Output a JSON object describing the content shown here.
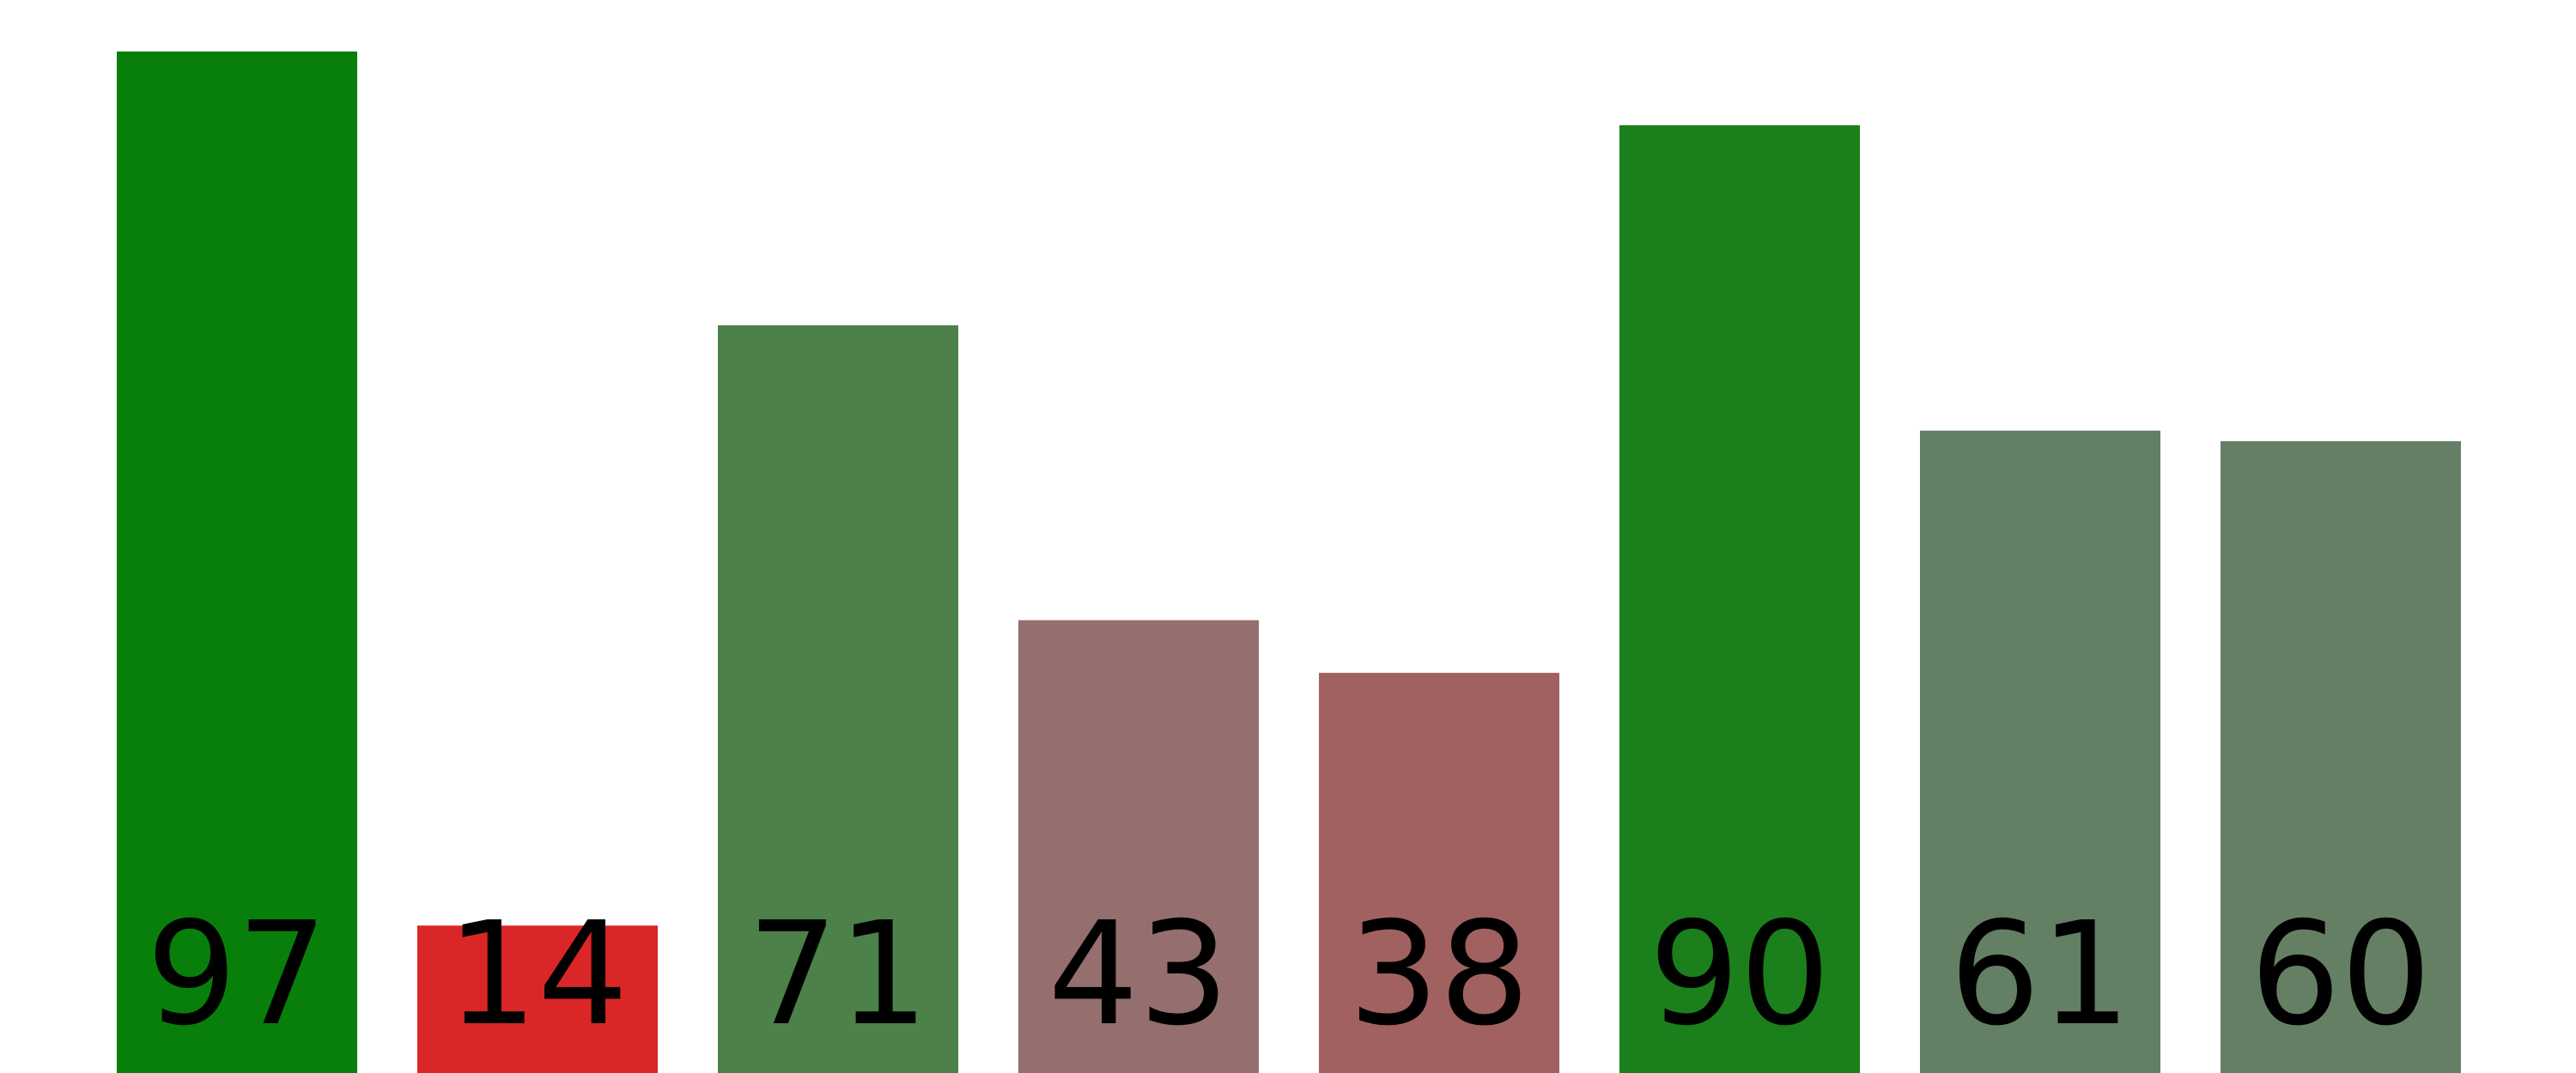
{
  "chart_data": {
    "type": "bar",
    "categories": [
      "",
      "",
      "",
      "",
      "",
      "",
      "",
      ""
    ],
    "values": [
      97,
      14,
      71,
      43,
      38,
      90,
      61,
      60
    ],
    "value_labels": [
      "97",
      "14",
      "71",
      "43",
      "38",
      "90",
      "61",
      "60"
    ],
    "colors": [
      "#087f0a",
      "#db2628",
      "#4c8149",
      "#946f6d",
      "#a16161",
      "#1b7f1b",
      "#637f64",
      "#657f65"
    ],
    "title": "",
    "xlabel": "",
    "ylabel": "",
    "ylim": [
      0,
      97
    ],
    "grid": false,
    "legend": "none"
  }
}
